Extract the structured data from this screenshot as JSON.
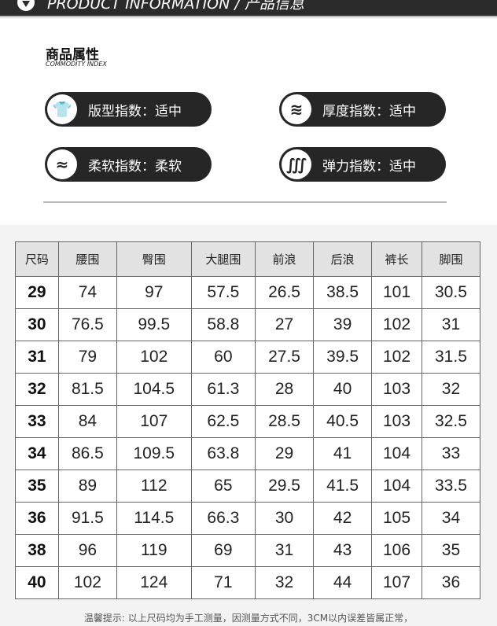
{
  "header": {
    "title": "PRODUCT INFORMATION / 产品信息"
  },
  "section": {
    "title": "商品属性",
    "subtitle": "COMMODITY INDEX"
  },
  "attributes": [
    {
      "icon": "tshirt-icon",
      "glyph": "👕",
      "label": "版型指数：适中"
    },
    {
      "icon": "thickness-waves-icon",
      "glyph": "≋",
      "label": "厚度指数：适中"
    },
    {
      "icon": "soft-feather-icon",
      "glyph": "≈",
      "label": "柔软指数：柔软"
    },
    {
      "icon": "stretch-icon",
      "glyph": "∭",
      "label": "弹力指数：适中"
    }
  ],
  "table": {
    "headers": [
      "尺码",
      "腰围",
      "臀围",
      "大腿围",
      "前浪",
      "后浪",
      "裤长",
      "脚围"
    ],
    "rows": [
      [
        "29",
        "74",
        "97",
        "57.5",
        "26.5",
        "38.5",
        "101",
        "30.5"
      ],
      [
        "30",
        "76.5",
        "99.5",
        "58.8",
        "27",
        "39",
        "102",
        "31"
      ],
      [
        "31",
        "79",
        "102",
        "60",
        "27.5",
        "39.5",
        "102",
        "31.5"
      ],
      [
        "32",
        "81.5",
        "104.5",
        "61.3",
        "28",
        "40",
        "103",
        "32"
      ],
      [
        "33",
        "84",
        "107",
        "62.5",
        "28.5",
        "40.5",
        "103",
        "32.5"
      ],
      [
        "34",
        "86.5",
        "109.5",
        "63.8",
        "29",
        "41",
        "104",
        "33"
      ],
      [
        "35",
        "89",
        "112",
        "65",
        "29.5",
        "41.5",
        "104",
        "33.5"
      ],
      [
        "36",
        "91.5",
        "114.5",
        "66.3",
        "30",
        "42",
        "105",
        "34"
      ],
      [
        "38",
        "96",
        "119",
        "69",
        "31",
        "43",
        "106",
        "35"
      ],
      [
        "40",
        "102",
        "124",
        "71",
        "32",
        "44",
        "107",
        "36"
      ]
    ]
  },
  "note": "温馨提示: 以上尺码均为手工测量，因测量方式不同，3CM以内误差皆属正常，"
}
